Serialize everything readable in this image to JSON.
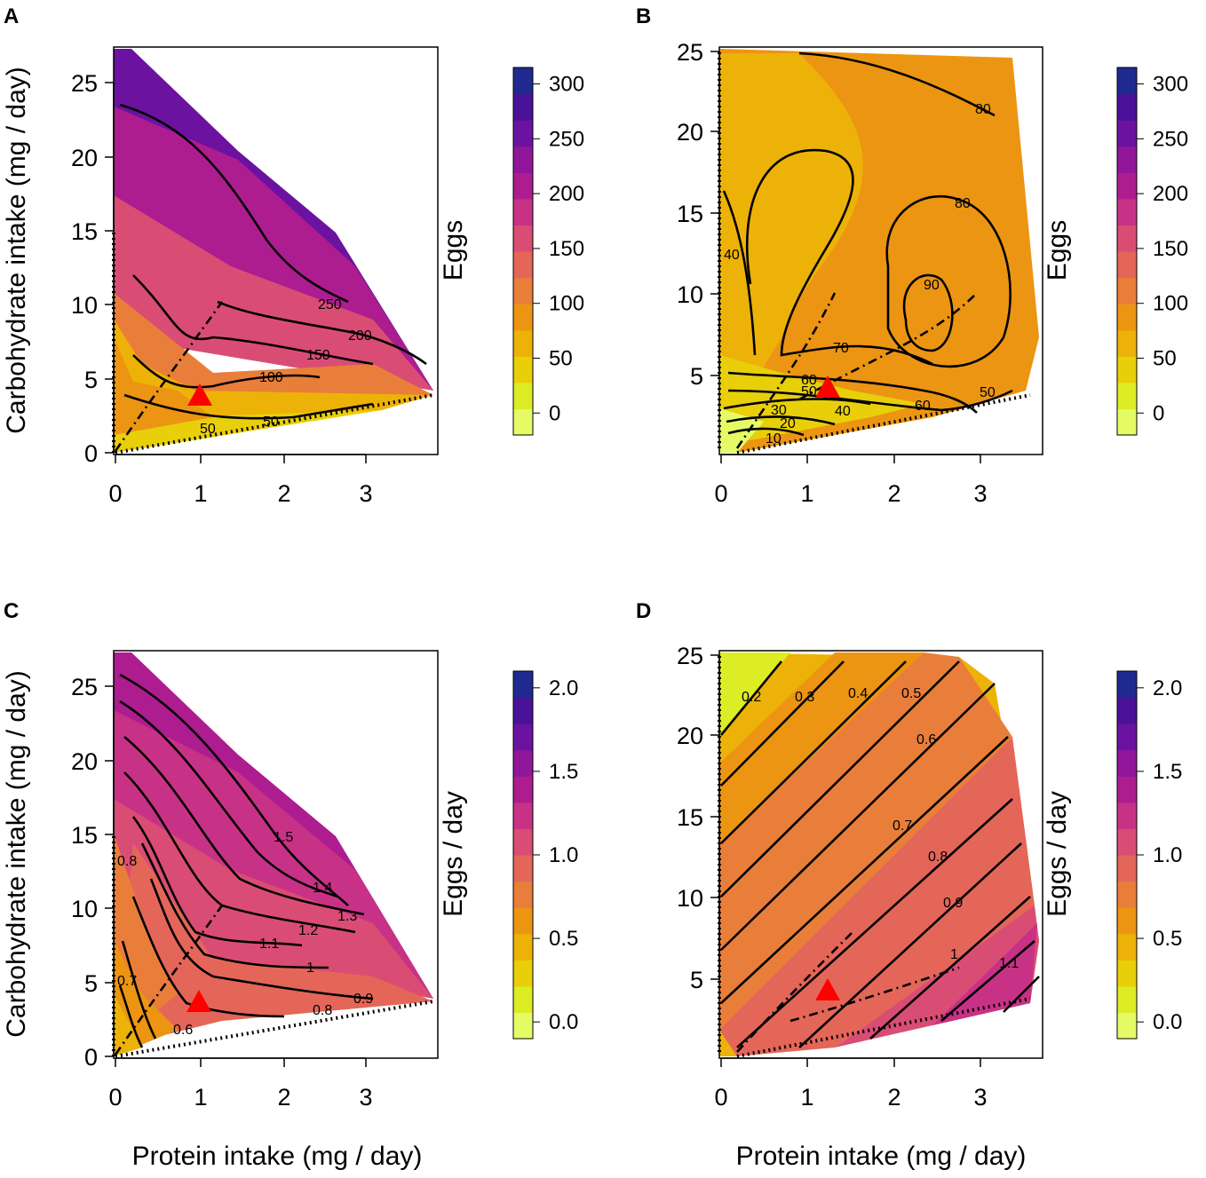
{
  "chart_data": [
    {
      "panel": "A",
      "type": "heatmap",
      "xlabel": "",
      "ylabel": "Carbohydrate intake (mg / day)",
      "xlim": [
        0,
        3.85
      ],
      "ylim": [
        0,
        27.5
      ],
      "xticks": [
        "0",
        "1",
        "2",
        "3"
      ],
      "yticks": [
        "0",
        "5",
        "10",
        "15",
        "20",
        "25"
      ],
      "legend_title": "Eggs",
      "legend_range": [
        -20,
        315
      ],
      "legend_ticks": [
        "0",
        "50",
        "100",
        "150",
        "200",
        "250",
        "300"
      ],
      "contour_labels": [
        "250",
        "200",
        "150",
        "100",
        "50",
        "50"
      ],
      "optimum": [
        0.97,
        3.8
      ]
    },
    {
      "panel": "B",
      "type": "heatmap",
      "xlabel": "",
      "ylabel": "",
      "xlim": [
        -0.02,
        3.75
      ],
      "ylim": [
        0.3,
        25.5
      ],
      "xticks": [
        "0",
        "1",
        "2",
        "3"
      ],
      "yticks": [
        "5",
        "10",
        "15",
        "20",
        "25"
      ],
      "legend_title": "Eggs",
      "legend_range": [
        -20,
        315
      ],
      "legend_ticks": [
        "0",
        "50",
        "100",
        "150",
        "200",
        "250",
        "300"
      ],
      "contour_labels": [
        "80",
        "80",
        "90",
        "40",
        "70",
        "60",
        "50",
        "40",
        "30",
        "20",
        "10",
        "50",
        "60"
      ],
      "optimum": [
        1.25,
        4.1
      ]
    },
    {
      "panel": "C",
      "type": "heatmap",
      "xlabel": "Protein intake (mg / day)",
      "ylabel": "Carbohydrate intake (mg / day)",
      "xlim": [
        0,
        3.85
      ],
      "ylim": [
        0,
        27.5
      ],
      "xticks": [
        "0",
        "1",
        "2",
        "3"
      ],
      "yticks": [
        "0",
        "5",
        "10",
        "15",
        "20",
        "25"
      ],
      "legend_title": "Eggs / day",
      "legend_range": [
        -0.1,
        2.1
      ],
      "legend_ticks": [
        "0.0",
        "0.5",
        "1.0",
        "1.5",
        "2.0"
      ],
      "contour_labels": [
        "1.5",
        "1.4",
        "1.3",
        "1.2",
        "1.1",
        "1",
        "0.9",
        "0.8",
        "0.8",
        "0.7",
        "0.6"
      ],
      "optimum": [
        0.97,
        3.7
      ]
    },
    {
      "panel": "D",
      "type": "heatmap",
      "xlabel": "Protein intake (mg / day)",
      "ylabel": "",
      "xlim": [
        -0.02,
        3.75
      ],
      "ylim": [
        0.3,
        25.5
      ],
      "xticks": [
        "0",
        "1",
        "2",
        "3"
      ],
      "yticks": [
        "5",
        "10",
        "15",
        "20",
        "25"
      ],
      "legend_title": "Eggs / day",
      "legend_range": [
        -0.1,
        2.1
      ],
      "legend_ticks": [
        "0.0",
        "0.5",
        "1.0",
        "1.5",
        "2.0"
      ],
      "contour_labels": [
        "0.2",
        "0.3",
        "0.4",
        "0.5",
        "0.6",
        "0.7",
        "0.8",
        "0.9",
        "1",
        "1.1"
      ],
      "optimum": [
        1.25,
        4.1
      ]
    }
  ],
  "palette": [
    "#e5fb66",
    "#dcec25",
    "#e8cf0a",
    "#edb208",
    "#ec9512",
    "#e97e3a",
    "#e36659",
    "#d94d75",
    "#c83286",
    "#ad1d90",
    "#90169a",
    "#6c12a0",
    "#4a1199",
    "#1f2a8e"
  ]
}
